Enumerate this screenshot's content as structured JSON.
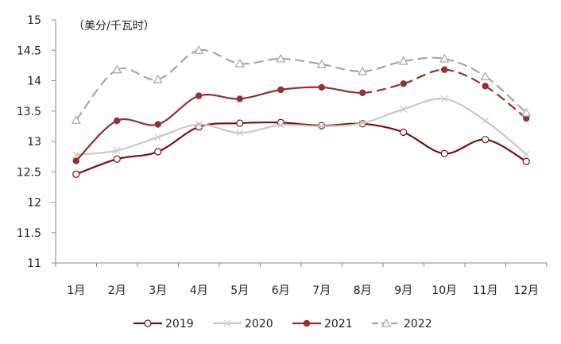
{
  "chart_data": {
    "type": "line",
    "title": "",
    "unit_label": "（美分/千瓦时）",
    "xlabel": "",
    "ylabel": "",
    "ylim": [
      11,
      15
    ],
    "yticks": [
      "11",
      "11.5",
      "12",
      "12.5",
      "13",
      "13.5",
      "14",
      "14.5",
      "15"
    ],
    "categories": [
      "1月",
      "2月",
      "3月",
      "4月",
      "5月",
      "6月",
      "7月",
      "8月",
      "9月",
      "10月",
      "11月",
      "12月"
    ],
    "grid": false,
    "legend_position": "bottom",
    "series": [
      {
        "name": "2019",
        "color": "#7a0c10",
        "marker": "open-circle",
        "dashed_from_index": null,
        "values": [
          12.46,
          12.71,
          12.83,
          13.24,
          13.3,
          13.31,
          13.26,
          13.29,
          13.15,
          12.8,
          13.03,
          12.67
        ]
      },
      {
        "name": "2020",
        "color": "#c9c9c9",
        "marker": "x",
        "dashed_from_index": null,
        "values": [
          12.78,
          12.85,
          13.07,
          13.28,
          13.14,
          13.27,
          13.25,
          13.3,
          13.53,
          13.7,
          13.34,
          12.79
        ]
      },
      {
        "name": "2021",
        "color": "#973033",
        "marker": "filled-circle",
        "dashed_from_index": 7,
        "values": [
          12.68,
          13.34,
          13.28,
          13.75,
          13.7,
          13.85,
          13.89,
          13.8,
          13.95,
          14.18,
          13.91,
          13.38
        ]
      },
      {
        "name": "2022",
        "color": "#a6a6a6",
        "marker": "open-triangle",
        "dashed_from_index": 0,
        "values": [
          13.35,
          14.18,
          14.02,
          14.5,
          14.28,
          14.36,
          14.27,
          14.15,
          14.32,
          14.36,
          14.07,
          13.47
        ]
      }
    ]
  }
}
